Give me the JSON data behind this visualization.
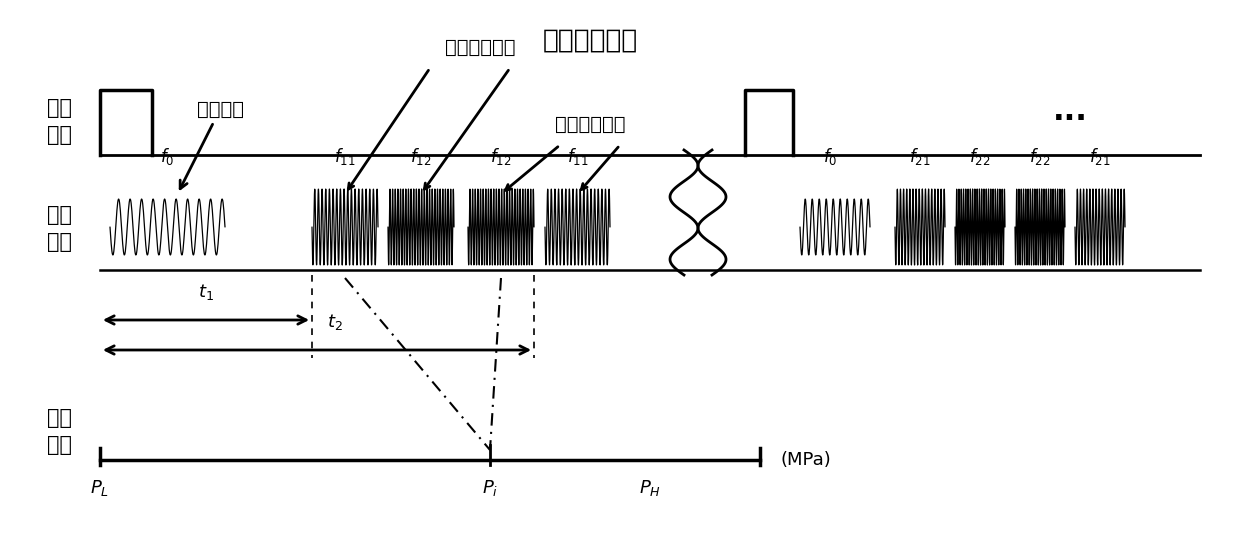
{
  "title": "测深追踪脉冲",
  "label_sync_1": "同步",
  "label_sync_2": "脉冲",
  "label_code_1": "编码",
  "label_code_2": "信号",
  "label_press_1": "压力",
  "label_press_2": "信息",
  "label_preamble": "前导脉冲",
  "label_tracking": "测深追踪脉冲",
  "label_ref": "测深参考脉冲",
  "label_MPa": "(MPa)",
  "label_dots": "···",
  "bg_color": "#ffffff",
  "text_color": "#000000"
}
